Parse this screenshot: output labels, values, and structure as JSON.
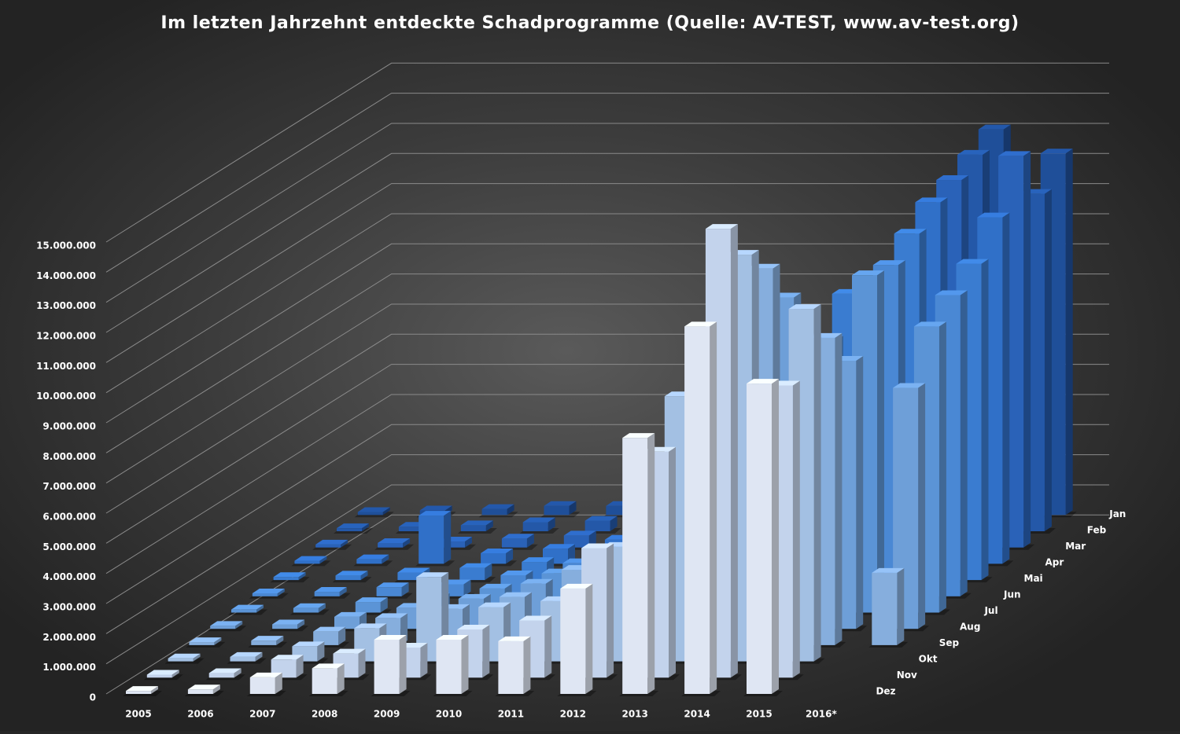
{
  "chart_data": {
    "type": "bar3d",
    "title": "Im letzten Jahrzehnt entdeckte Schadprogramme (Quelle: AV-TEST, www.av-test.org)",
    "categories": [
      "2005",
      "2006",
      "2007",
      "2008",
      "2009",
      "2010",
      "2011",
      "2012",
      "2013",
      "2014",
      "2015",
      "2016*"
    ],
    "ylim": [
      0,
      15000000
    ],
    "yticks": [
      {
        "value": 0,
        "label": "0"
      },
      {
        "value": 1000000,
        "label": "1.000.000"
      },
      {
        "value": 2000000,
        "label": "2.000.000"
      },
      {
        "value": 3000000,
        "label": "3.000.000"
      },
      {
        "value": 4000000,
        "label": "4.000.000"
      },
      {
        "value": 5000000,
        "label": "5.000.000"
      },
      {
        "value": 6000000,
        "label": "6.000.000"
      },
      {
        "value": 7000000,
        "label": "7.000.000"
      },
      {
        "value": 8000000,
        "label": "8.000.000"
      },
      {
        "value": 9000000,
        "label": "9.000.000"
      },
      {
        "value": 10000000,
        "label": "10.000.000"
      },
      {
        "value": 11000000,
        "label": "11.000.000"
      },
      {
        "value": 12000000,
        "label": "12.000.000"
      },
      {
        "value": 13000000,
        "label": "13.000.000"
      },
      {
        "value": 14000000,
        "label": "14.000.000"
      },
      {
        "value": 15000000,
        "label": "15.000.000"
      }
    ],
    "grid": true,
    "series": [
      {
        "name": "Jan",
        "color": "#1f4f99",
        "values": [
          100000,
          150000,
          200000,
          300000,
          300000,
          400000,
          500000,
          1200000,
          1600000,
          5500000,
          12800000,
          12000000
        ]
      },
      {
        "name": "Feb",
        "color": "#2458a8",
        "values": [
          100000,
          150000,
          200000,
          300000,
          350000,
          500000,
          600000,
          1000000,
          1800000,
          6000000,
          12500000,
          11200000
        ]
      },
      {
        "name": "Mar",
        "color": "#2a62b8",
        "values": [
          100000,
          150000,
          200000,
          300000,
          400000,
          600000,
          800000,
          1300000,
          2000000,
          7500000,
          12200000,
          13000000
        ]
      },
      {
        "name": "Apr",
        "color": "#3070c8",
        "values": [
          100000,
          150000,
          1600000,
          350000,
          500000,
          800000,
          1000000,
          1400000,
          2200000,
          8800000,
          12000000,
          11500000
        ]
      },
      {
        "name": "Mai",
        "color": "#3a7cd0",
        "values": [
          100000,
          150000,
          250000,
          400000,
          600000,
          1000000,
          1200000,
          1600000,
          3000000,
          9500000,
          11500000,
          10500000
        ]
      },
      {
        "name": "Jun",
        "color": "#4a88d4",
        "values": [
          100000,
          150000,
          300000,
          400000,
          700000,
          1100000,
          1300000,
          2000000,
          3500000,
          8500000,
          11000000,
          10000000
        ]
      },
      {
        "name": "Jul",
        "color": "#5b94d6",
        "values": [
          100000,
          150000,
          350000,
          500000,
          800000,
          1300000,
          1600000,
          2500000,
          4200000,
          9000000,
          11200000,
          9500000
        ]
      },
      {
        "name": "Aug",
        "color": "#6e9fd8",
        "values": [
          100000,
          150000,
          400000,
          700000,
          1000000,
          1500000,
          2200000,
          2800000,
          5000000,
          11000000,
          8900000,
          8000000
        ]
      },
      {
        "name": "Sep",
        "color": "#86aedd",
        "values": [
          100000,
          150000,
          450000,
          900000,
          1200000,
          1600000,
          2500000,
          3200000,
          6500000,
          12500000,
          10200000,
          2400000
        ]
      },
      {
        "name": "Okt",
        "color": "#a3c0e3",
        "values": [
          100000,
          150000,
          500000,
          1100000,
          2800000,
          1800000,
          2000000,
          3800000,
          8800000,
          13500000,
          11700000,
          null
        ]
      },
      {
        "name": "Nov",
        "color": "#c3d3ec",
        "values": [
          100000,
          150000,
          600000,
          800000,
          1000000,
          1600000,
          1900000,
          4300000,
          7500000,
          14900000,
          9700000,
          null
        ]
      },
      {
        "name": "Dez",
        "color": "#dfe6f3",
        "values": [
          100000,
          150000,
          550000,
          850000,
          1800000,
          1800000,
          1750000,
          3500000,
          8500000,
          12200000,
          10300000,
          null
        ]
      }
    ]
  }
}
